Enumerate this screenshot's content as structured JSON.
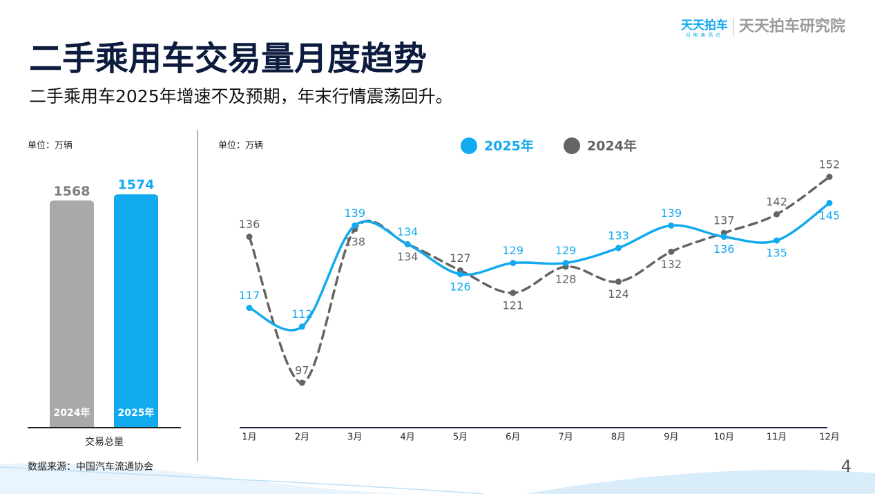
{
  "header": {
    "title": "二手乘用车交易量月度趋势",
    "subtitle": "二手乘用车2025年增速不及预期，年末行情震荡回升。",
    "logo": "天天拍车",
    "logo_tagline": "闪电卖高价",
    "institute": "天天拍车研究院"
  },
  "chart_data": [
    {
      "type": "bar",
      "unit_label": "单位：万辆",
      "categories": [
        "2024年",
        "2025年"
      ],
      "values": [
        1568,
        1574
      ],
      "colors": [
        "#a9a9a9",
        "#12aaee"
      ],
      "label_colors": [
        "#7f7f7f",
        "#12aaee"
      ],
      "xlabel": "交易总量",
      "ylim": [
        1350,
        1600
      ]
    },
    {
      "type": "line",
      "unit_label": "单位：万辆",
      "categories": [
        "1月",
        "2月",
        "3月",
        "4月",
        "5月",
        "6月",
        "7月",
        "8月",
        "9月",
        "10月",
        "11月",
        "12月"
      ],
      "series": [
        {
          "name": "2025年",
          "color": "#12aaee",
          "dashed": false,
          "values": [
            117,
            112,
            139,
            134,
            126,
            129,
            129,
            133,
            139,
            136,
            135,
            145
          ]
        },
        {
          "name": "2024年",
          "color": "#646464",
          "dashed": true,
          "values": [
            136,
            97,
            138,
            134,
            127,
            121,
            128,
            124,
            132,
            137,
            142,
            152
          ]
        }
      ],
      "ylim": [
        85,
        160
      ]
    }
  ],
  "footer": {
    "source": "数据来源：中国汽车流通协会",
    "page": "4"
  }
}
